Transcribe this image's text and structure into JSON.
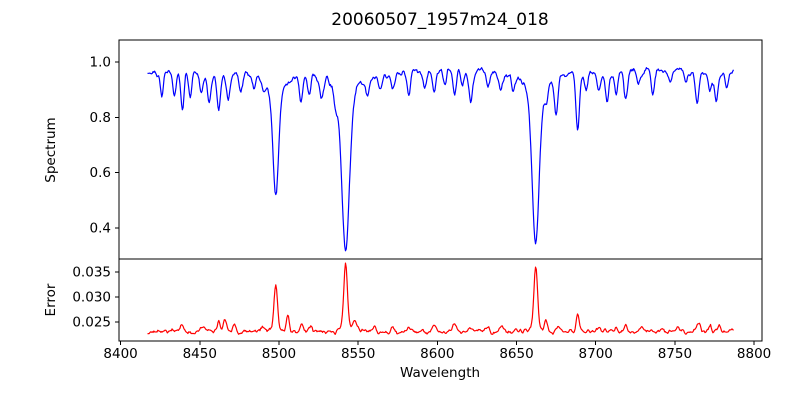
{
  "figure": {
    "background": "#ffffff",
    "text_color": "#000000"
  },
  "chart_data": {
    "type": "line",
    "title": "20060507_1957m24_018",
    "xlabel": "Wavelength",
    "grid": false,
    "legend": "none",
    "x_axis": {
      "range": [
        8399,
        8805
      ],
      "ticks": [
        8400,
        8450,
        8500,
        8550,
        8600,
        8650,
        8700,
        8750,
        8800
      ],
      "tick_labels": [
        "8400",
        "8450",
        "8500",
        "8550",
        "8600",
        "8650",
        "8700",
        "8750",
        "8800"
      ]
    },
    "sampling": {
      "x_start": 8417,
      "x_end": 8787,
      "step": 0.5,
      "noise_seed": 20060507
    },
    "panels": [
      {
        "name": "spectrum",
        "ylabel": "Spectrum",
        "color": "#0000ff",
        "y_range": [
          0.288,
          1.0795
        ],
        "y_ticks": [
          0.4,
          0.6,
          0.8,
          1.0
        ],
        "y_tick_labels": [
          "0.4",
          "0.6",
          "0.8",
          "1.0"
        ],
        "continuum": 0.965,
        "noise_fine_amp": 0.013,
        "noise_medium_amp": 0.016,
        "noise_low_amp": 0.007,
        "strong_absorption_lines": [
          {
            "center": 8498.0,
            "depth": 0.45,
            "core_sigma": 2.4,
            "wing_gamma": 5.0
          },
          {
            "center": 8542.1,
            "depth": 0.645,
            "core_sigma": 3.2,
            "wing_gamma": 6.0
          },
          {
            "center": 8662.1,
            "depth": 0.625,
            "core_sigma": 3.0,
            "wing_gamma": 5.5
          }
        ],
        "weak_line_sigma": 1.5,
        "weak_absorption_lines": [
          [
            8426,
            0.085
          ],
          [
            8434,
            0.1
          ],
          [
            8439,
            0.135
          ],
          [
            8444,
            0.095
          ],
          [
            8451,
            0.075
          ],
          [
            8456,
            0.095
          ],
          [
            8462,
            0.125
          ],
          [
            8468,
            0.105
          ],
          [
            8476,
            0.065
          ],
          [
            8484,
            0.055
          ],
          [
            8490,
            0.04
          ],
          [
            8514,
            0.1
          ],
          [
            8519,
            0.075
          ],
          [
            8527,
            0.065
          ],
          [
            8536,
            0.055
          ],
          [
            8556,
            0.055
          ],
          [
            8564,
            0.045
          ],
          [
            8572,
            0.05
          ],
          [
            8582,
            0.095
          ],
          [
            8592,
            0.055
          ],
          [
            8598,
            0.085
          ],
          [
            8605,
            0.05
          ],
          [
            8611,
            0.095
          ],
          [
            8616,
            0.06
          ],
          [
            8621,
            0.095
          ],
          [
            8632,
            0.055
          ],
          [
            8640,
            0.05
          ],
          [
            8648,
            0.045
          ],
          [
            8669,
            0.06
          ],
          [
            8675,
            0.135
          ],
          [
            8688.6,
            0.205
          ],
          [
            8694,
            0.055
          ],
          [
            8702,
            0.065
          ],
          [
            8707,
            0.095
          ],
          [
            8713,
            0.075
          ],
          [
            8719,
            0.105
          ],
          [
            8727,
            0.055
          ],
          [
            8736,
            0.085
          ],
          [
            8747,
            0.05
          ],
          [
            8757,
            0.045
          ],
          [
            8764,
            0.115
          ],
          [
            8772,
            0.06
          ],
          [
            8776,
            0.09
          ],
          [
            8783,
            0.055
          ]
        ]
      },
      {
        "name": "error",
        "ylabel": "Error",
        "color": "#ff0000",
        "y_range": [
          0.0212,
          0.0376
        ],
        "y_ticks": [
          0.025,
          0.03,
          0.035
        ],
        "y_tick_labels": [
          "0.025",
          "0.030",
          "0.035"
        ],
        "baseline": 0.0231,
        "noise_fine_amp": 0.00055,
        "noise_medium_amp": 0.00035,
        "peaks": [
          [
            8439,
            0.0011,
            1.5
          ],
          [
            8452,
            0.0009,
            1.5
          ],
          [
            8462,
            0.0017,
            1.5
          ],
          [
            8466,
            0.0021,
            1.5
          ],
          [
            8472,
            0.0011,
            1.5
          ],
          [
            8490,
            0.0007,
            1.5
          ],
          [
            8498.0,
            0.0085,
            1.5
          ],
          [
            8498.0,
            0.0009,
            4.0
          ],
          [
            8505.5,
            0.0033,
            1.2
          ],
          [
            8514,
            0.0013,
            1.5
          ],
          [
            8520,
            0.0011,
            1.5
          ],
          [
            8542.1,
            0.0122,
            1.6
          ],
          [
            8542.1,
            0.0012,
            5.0
          ],
          [
            8548,
            0.0024,
            1.5
          ],
          [
            8560,
            0.0007,
            1.5
          ],
          [
            8572,
            0.0006,
            1.5
          ],
          [
            8582,
            0.001,
            1.5
          ],
          [
            8598,
            0.0009,
            1.5
          ],
          [
            8611,
            0.001,
            1.5
          ],
          [
            8621,
            0.0013,
            1.5
          ],
          [
            8632,
            0.0008,
            1.5
          ],
          [
            8640,
            0.001,
            1.5
          ],
          [
            8662.1,
            0.0115,
            1.6
          ],
          [
            8662.1,
            0.0011,
            4.5
          ],
          [
            8668.5,
            0.0023,
            1.3
          ],
          [
            8676,
            0.0013,
            1.5
          ],
          [
            8688.6,
            0.0033,
            1.4
          ],
          [
            8702,
            0.0008,
            1.5
          ],
          [
            8713,
            0.0009,
            1.5
          ],
          [
            8719,
            0.0013,
            1.5
          ],
          [
            8729,
            0.0009,
            1.5
          ],
          [
            8742,
            0.0008,
            1.5
          ],
          [
            8752,
            0.0007,
            1.5
          ],
          [
            8765,
            0.0014,
            1.5
          ],
          [
            8772,
            0.001,
            1.5
          ],
          [
            8778,
            0.0012,
            1.5
          ]
        ]
      }
    ]
  }
}
